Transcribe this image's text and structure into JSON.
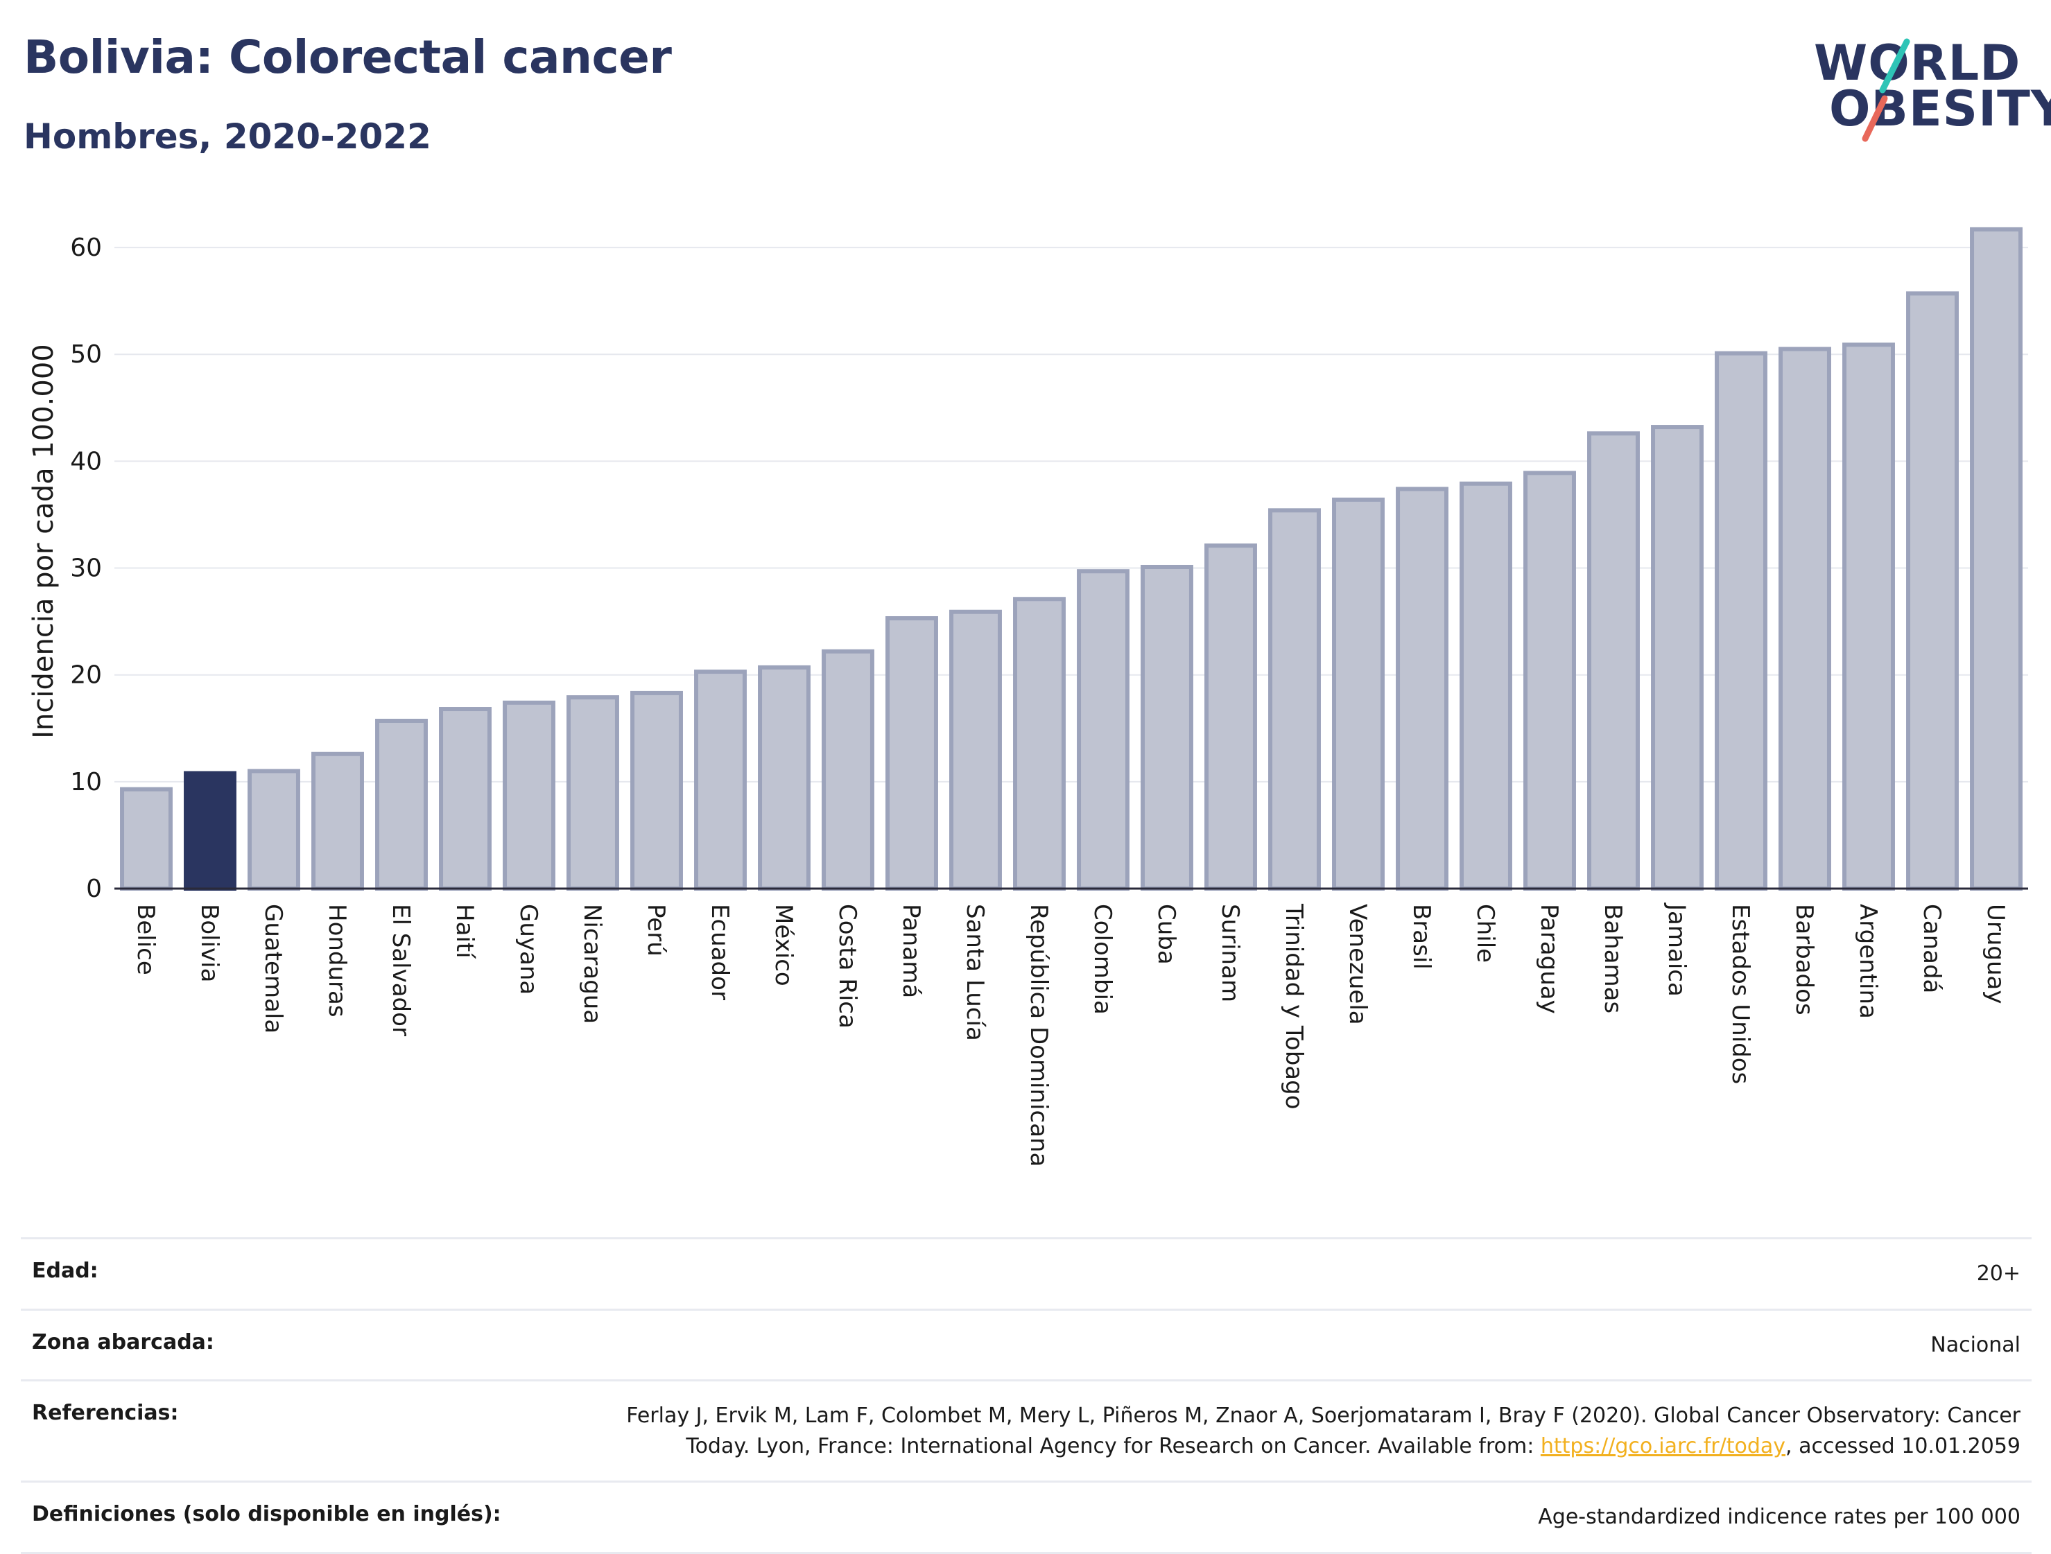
{
  "header": {
    "title": "Bolivia: Colorectal cancer",
    "subtitle": "Hombres, 2020-2022"
  },
  "logo": {
    "line1": "WORLD",
    "line2": "OBESITY",
    "slash_colors": [
      "#2ec4b6",
      "#e8685a"
    ]
  },
  "colors": {
    "highlight_bar": "#2a3560",
    "bar_fill": "#bfc3d1",
    "bar_stroke": "#9ca3bb",
    "gridline": "#e6e8ee",
    "text_dark": "#2a3560",
    "link": "#f2b01e"
  },
  "chart_data": {
    "type": "bar",
    "ylabel": "Incidencia por cada 100.000",
    "ylim": [
      0,
      65
    ],
    "yticks": [
      0,
      10,
      20,
      30,
      40,
      50,
      60
    ],
    "grid": true,
    "highlight": "Bolivia",
    "categories": [
      "Belice",
      "Bolivia",
      "Guatemala",
      "Honduras",
      "El Salvador",
      "Haití",
      "Guyana",
      "Nicaragua",
      "Perú",
      "Ecuador",
      "México",
      "Costa Rica",
      "Panamá",
      "Santa Lucía",
      "República Dominicana",
      "Colombia",
      "Cuba",
      "Surinam",
      "Trinidad y Tobago",
      "Venezuela",
      "Brasil",
      "Chile",
      "Paraguay",
      "Bahamas",
      "Jamaica",
      "Estados Unidos",
      "Barbados",
      "Argentina",
      "Canadá",
      "Uruguay"
    ],
    "values": [
      9.3,
      10.8,
      11.0,
      12.6,
      15.7,
      16.8,
      17.4,
      17.9,
      18.3,
      20.3,
      20.7,
      22.2,
      25.3,
      25.9,
      27.1,
      29.7,
      30.1,
      32.1,
      35.4,
      36.4,
      37.4,
      37.9,
      38.9,
      42.6,
      43.2,
      50.1,
      50.5,
      50.9,
      55.7,
      61.7
    ]
  },
  "info": {
    "rows": [
      {
        "label": "Edad:",
        "value": "20+"
      },
      {
        "label": "Zona abarcada:",
        "value": "Nacional"
      },
      {
        "label": "Referencias:",
        "value_before": "Ferlay J, Ervik M, Lam F, Colombet M, Mery L, Piñeros M, Znaor A, Soerjomataram I, Bray F (2020). Global Cancer Observatory: Cancer Today. Lyon, France: International Agency for Research on Cancer. Available from: ",
        "link_text": "https://gco.iarc.fr/today",
        "value_after": ", accessed 10.01.2059"
      },
      {
        "label": "Definiciones (solo disponible en inglés):",
        "value": "Age-standardized indicence rates per 100 000"
      }
    ]
  }
}
